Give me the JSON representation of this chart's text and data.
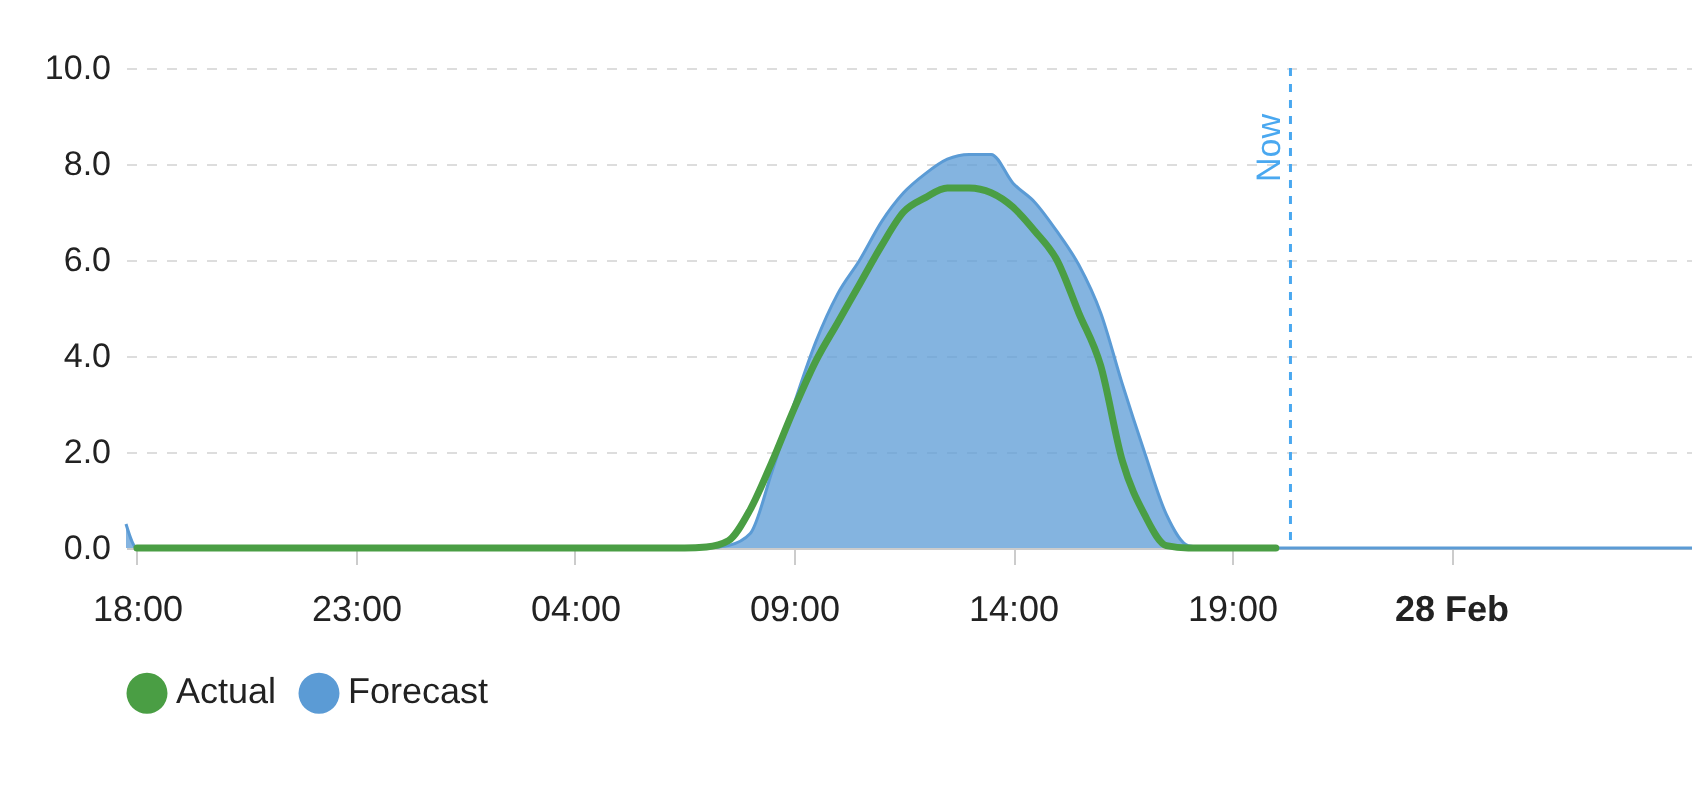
{
  "chart_data": {
    "type": "line",
    "xlim": [
      "--02-26T17:45",
      "--02-28T05:30"
    ],
    "xticks": [
      {
        "value": "--02-26T18:00",
        "label": "18:00"
      },
      {
        "value": "--02-26T23:00",
        "label": "23:00"
      },
      {
        "value": "--02-27T04:00",
        "label": "04:00"
      },
      {
        "value": "--02-27T09:00",
        "label": "09:00"
      },
      {
        "value": "--02-27T14:00",
        "label": "14:00"
      },
      {
        "value": "--02-27T19:00",
        "label": "19:00"
      },
      {
        "value": "--02-28T00:00",
        "label": "28 Feb"
      }
    ],
    "ylim": [
      0,
      10
    ],
    "yticks": [
      {
        "value": 0,
        "label": "0.0"
      },
      {
        "value": 2,
        "label": "2.0"
      },
      {
        "value": 4,
        "label": "4.0"
      },
      {
        "value": 6,
        "label": "6.0"
      },
      {
        "value": 8,
        "label": "8.0"
      },
      {
        "value": 10,
        "label": "10.0"
      }
    ],
    "grid": "y",
    "legend": "bottom",
    "ref_lines": [
      {
        "axis": "x",
        "value": "--02-27T20:20",
        "label": "Now",
        "color": "#4aa8f0",
        "line_style": "dashed"
      }
    ],
    "series": [
      {
        "name": "Forecast",
        "type": "area",
        "color": "#5b9bd5",
        "x": [
          "--02-26T17:45",
          "--02-26T18:00",
          "--02-27T07:00",
          "--02-27T07:30",
          "--02-27T08:00",
          "--02-27T08:30",
          "--02-27T09:00",
          "--02-27T09:30",
          "--02-27T10:00",
          "--02-27T10:30",
          "--02-27T11:00",
          "--02-27T11:30",
          "--02-27T12:00",
          "--02-27T12:30",
          "--02-27T13:00",
          "--02-27T13:30",
          "--02-27T14:00",
          "--02-27T14:30",
          "--02-27T15:00",
          "--02-27T15:30",
          "--02-27T16:00",
          "--02-27T16:30",
          "--02-27T17:00",
          "--02-27T17:30",
          "--02-27T18:00",
          "--02-27T18:30",
          "--02-28T05:30"
        ],
        "values": [
          0.5,
          0,
          0,
          0.05,
          0.3,
          1.6,
          3.0,
          4.3,
          5.3,
          6.0,
          6.8,
          7.4,
          7.8,
          8.1,
          8.2,
          8.2,
          7.6,
          7.2,
          6.6,
          5.9,
          4.9,
          3.4,
          2.0,
          0.7,
          0.05,
          0,
          0
        ]
      },
      {
        "name": "Actual",
        "color": "#4a9e44",
        "x": [
          "--02-26T18:00",
          "--02-27T06:30",
          "--02-27T07:00",
          "--02-27T07:30",
          "--02-27T08:00",
          "--02-27T08:30",
          "--02-27T09:00",
          "--02-27T09:30",
          "--02-27T10:00",
          "--02-27T10:30",
          "--02-27T11:00",
          "--02-27T11:30",
          "--02-27T12:00",
          "--02-27T12:30",
          "--02-27T13:00",
          "--02-27T13:30",
          "--02-27T14:00",
          "--02-27T14:30",
          "--02-27T15:00",
          "--02-27T15:30",
          "--02-27T16:00",
          "--02-27T16:30",
          "--02-27T17:00",
          "--02-27T17:30",
          "--02-27T18:00",
          "--02-27T20:00"
        ],
        "values": [
          0,
          0,
          0.02,
          0.15,
          0.8,
          1.8,
          2.9,
          3.9,
          4.7,
          5.5,
          6.3,
          7.0,
          7.3,
          7.5,
          7.5,
          7.4,
          7.1,
          6.6,
          6.0,
          4.9,
          3.8,
          1.8,
          0.7,
          0.05,
          0,
          0
        ]
      }
    ]
  }
}
